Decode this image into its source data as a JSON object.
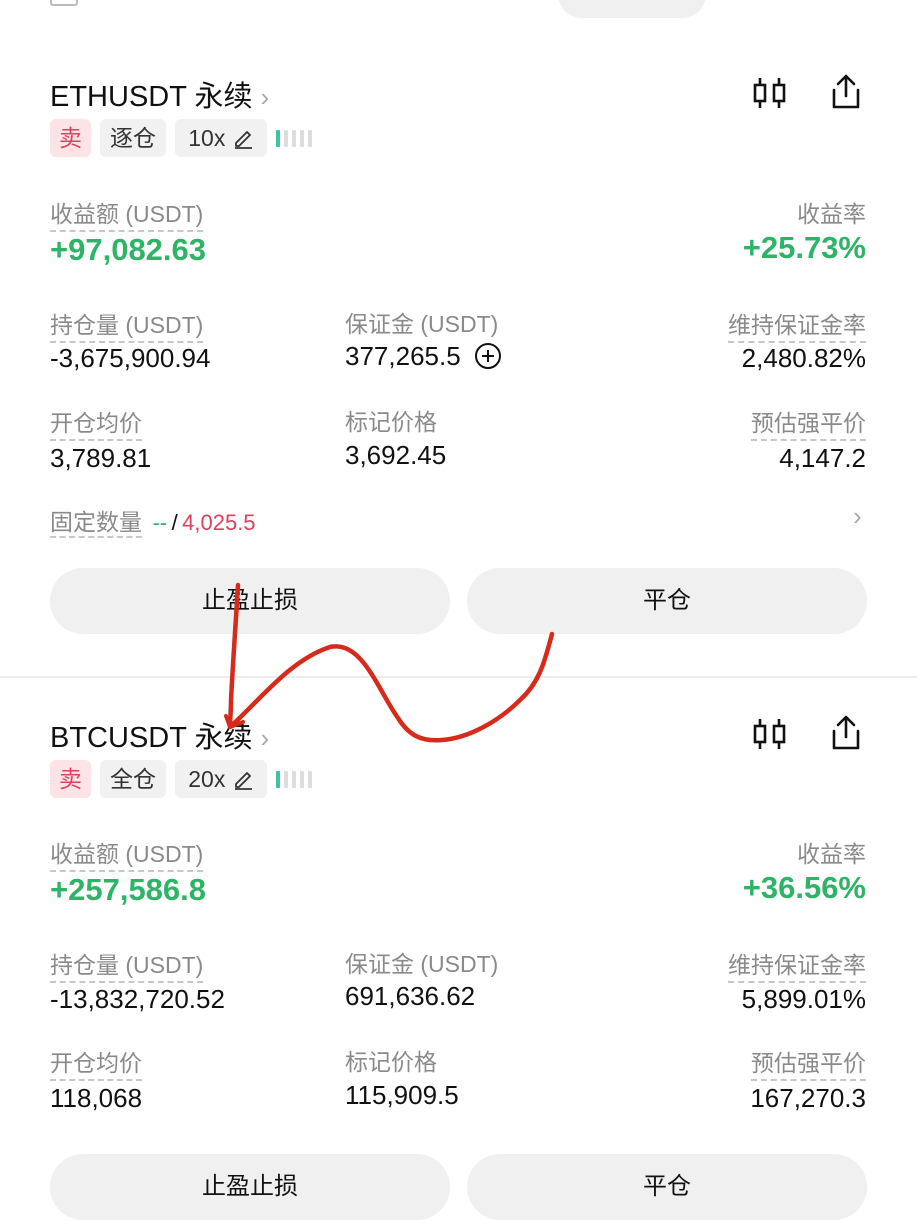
{
  "positions": [
    {
      "symbol": "ETHUSDT 永续",
      "side": "卖",
      "margin_mode": "逐仓",
      "leverage": "10x",
      "pnl_label": "收益额 (USDT)",
      "pnl_value": "+97,082.63",
      "roe_label": "收益率",
      "roe_value": "+25.73%",
      "size_label": "持仓量 (USDT)",
      "size_value": "-3,675,900.94",
      "margin_label": "保证金 (USDT)",
      "margin_value": "377,265.5",
      "mmr_label": "维持保证金率",
      "mmr_value": "2,480.82%",
      "entry_label": "开仓均价",
      "entry_value": "3,789.81",
      "mark_label": "标记价格",
      "mark_value": "3,692.45",
      "liq_label": "预估强平价",
      "liq_value": "4,147.2",
      "fixed_label": "固定数量",
      "fixed_value_a": "--",
      "fixed_sep": "/",
      "fixed_value_b": "4,025.5",
      "tpsl_button": "止盈止损",
      "close_button": "平仓"
    },
    {
      "symbol": "BTCUSDT 永续",
      "side": "卖",
      "margin_mode": "全仓",
      "leverage": "20x",
      "pnl_label": "收益额 (USDT)",
      "pnl_value": "+257,586.8",
      "roe_label": "收益率",
      "roe_value": "+36.56%",
      "size_label": "持仓量 (USDT)",
      "size_value": "-13,832,720.52",
      "margin_label": "保证金 (USDT)",
      "margin_value": "691,636.62",
      "mmr_label": "维持保证金率",
      "mmr_value": "5,899.01%",
      "entry_label": "开仓均价",
      "entry_value": "118,068",
      "mark_label": "标记价格",
      "mark_value": "115,909.5",
      "liq_label": "预估强平价",
      "liq_value": "167,270.3",
      "tpsl_button": "止盈止损",
      "close_button": "平仓"
    }
  ],
  "colors": {
    "profit_green": "#2eb466",
    "sell_red": "#e0405d",
    "annotation_red": "#d62a1a",
    "leverage_bar": "#3cc4a0"
  },
  "icons": [
    "chevron-right-icon",
    "candlestick-chart-icon",
    "share-icon",
    "edit-pencil-icon",
    "plus-circle-icon"
  ]
}
